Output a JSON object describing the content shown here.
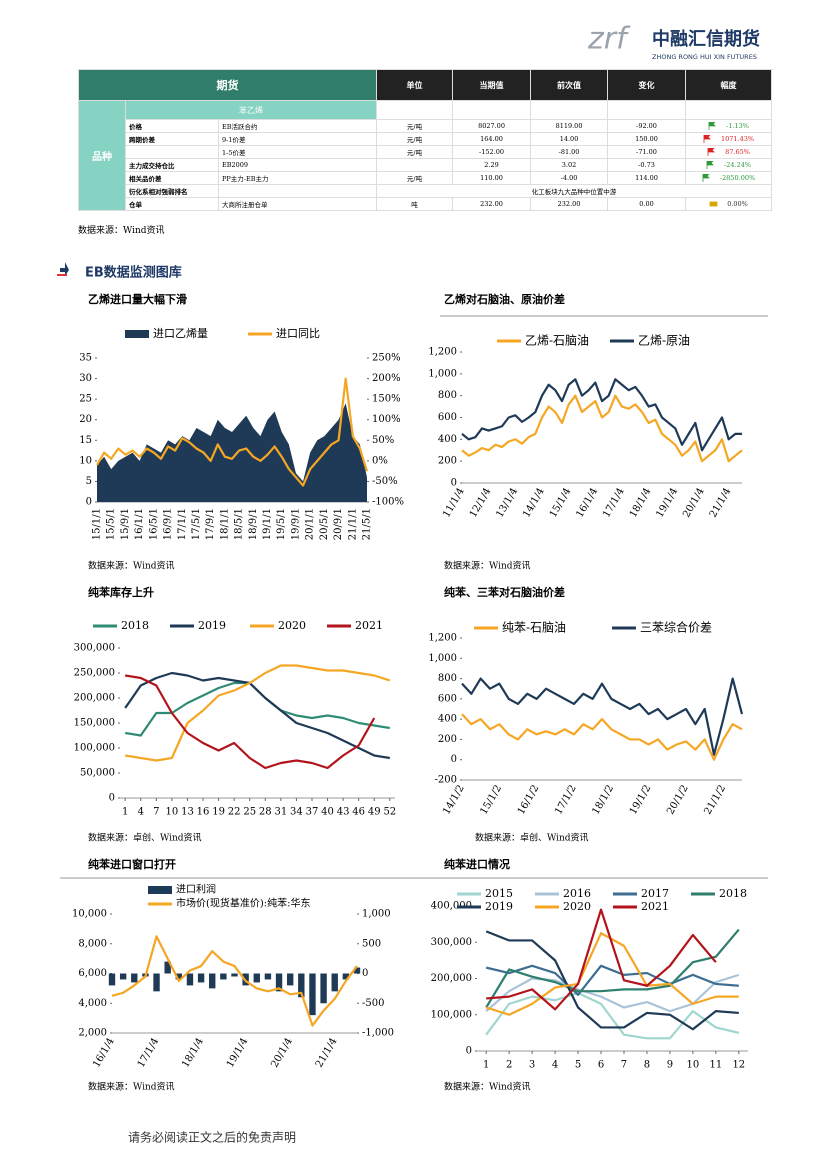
{
  "header": {
    "logo_mark": "zrf",
    "logo_text": "中融汇信期货",
    "logo_sub": "ZHONG RONG HUI XIN FUTURES"
  },
  "table": {
    "headers": [
      "期货",
      "单位",
      "当期值",
      "前次值",
      "变化",
      "幅度"
    ],
    "group": "品种",
    "section": "苯乙烯",
    "rows": [
      {
        "item": "价格",
        "spec": "EB活跃合约",
        "unit": "元/吨",
        "current": "8027.00",
        "previous": "8119.00",
        "change": "-92.00",
        "flag": "green",
        "pct": "-1.13%"
      },
      {
        "item": "跨期价差",
        "spec": "9-1价差",
        "unit": "元/吨",
        "current": "164.00",
        "previous": "14.00",
        "change": "150.00",
        "flag": "red",
        "pct": "1071.43%"
      },
      {
        "spec": "1-5价差",
        "unit": "元/吨",
        "current": "-152.00",
        "previous": "-81.00",
        "change": "-71.00",
        "flag": "red",
        "pct": "87.65%"
      },
      {
        "item": "主力成交持仓比",
        "spec": "EB2009",
        "current": "2.29",
        "previous": "3.02",
        "change": "-0.73",
        "flag": "green",
        "pct": "-24.24%"
      },
      {
        "item": "相关品价差",
        "spec": "PP主力-EB主力",
        "unit": "元/吨",
        "current": "110.00",
        "previous": "-4.00",
        "change": "114.00",
        "flag": "green",
        "pct": "-2850.00%"
      },
      {
        "item": "衍化系相对强弱排名",
        "note": "化工板块九大品种中位置中游"
      },
      {
        "item": "仓单",
        "spec": "大商所注册仓单",
        "unit": "吨",
        "current": "232.00",
        "previous": "232.00",
        "change": "0.00",
        "flag": "yellow",
        "pct": "0.00%"
      }
    ]
  },
  "table_source": "数据来源：Wind资讯",
  "section_title": "EB数据监测图库",
  "footer": "请务必阅读正文之后的免责声明",
  "chart_data": [
    {
      "type": "combo",
      "title": "乙烯进口量大幅下滑",
      "source": "数据来源：Wind资讯",
      "categories": [
        "15/1/1",
        null,
        "15/5/1",
        null,
        "15/9/1",
        null,
        "16/1/1",
        null,
        "16/5/1",
        null,
        "16/9/1",
        null,
        "17/1/1",
        null,
        "17/5/1",
        null,
        "17/9/1",
        null,
        "18/1/1",
        null,
        "18/5/1",
        null,
        "18/9/1",
        null,
        "19/1/1",
        null,
        "19/5/1",
        null,
        "19/9/1",
        null,
        "20/1/1",
        null,
        "20/5/1",
        null,
        "20/9/1",
        null,
        "21/1/1",
        null,
        "21/5/1"
      ],
      "series": [
        {
          "name": "进口乙烯量",
          "type": "area",
          "color": "#1f3a56",
          "values": [
            9,
            11,
            8,
            10,
            11,
            12,
            10,
            14,
            13,
            12,
            15,
            14,
            16,
            15,
            18,
            17,
            16,
            20,
            18,
            17,
            19,
            21,
            18,
            16,
            20,
            22,
            17,
            14,
            7,
            5,
            12,
            15,
            16,
            18,
            20,
            24,
            16,
            14,
            6
          ]
        },
        {
          "name": "进口同比",
          "type": "line",
          "axis": "y2",
          "color": "#f5a623",
          "values": [
            -10,
            20,
            5,
            30,
            15,
            25,
            10,
            30,
            20,
            5,
            35,
            25,
            55,
            45,
            30,
            20,
            0,
            40,
            10,
            5,
            25,
            30,
            10,
            0,
            15,
            35,
            10,
            -20,
            -40,
            -60,
            -20,
            0,
            20,
            40,
            50,
            200,
            60,
            30,
            -25
          ]
        }
      ],
      "ylim": [
        0,
        35
      ],
      "yticks": [
        0,
        5,
        10,
        15,
        20,
        25,
        30,
        35
      ],
      "y2lim": [
        -100,
        250
      ],
      "y2ticks": [
        {
          "value": -100,
          "label": "-100%"
        },
        {
          "value": -50,
          "label": "-50%"
        },
        {
          "value": 0,
          "label": "0%"
        },
        {
          "value": 50,
          "label": "50%"
        },
        {
          "value": 100,
          "label": "100%"
        },
        {
          "value": 150,
          "label": "150%"
        },
        {
          "value": 200,
          "label": "200%"
        },
        {
          "value": 250,
          "label": "250%"
        }
      ]
    },
    {
      "type": "line",
      "title": "乙烯对石脑油、原油价差",
      "source": "数据来源：Wind资讯",
      "categories": [
        "11/1/4",
        null,
        null,
        null,
        "12/1/4",
        null,
        null,
        null,
        "13/1/4",
        null,
        null,
        null,
        "14/1/4",
        null,
        null,
        null,
        "15/1/4",
        null,
        null,
        null,
        "16/1/4",
        null,
        null,
        null,
        "17/1/4",
        null,
        null,
        null,
        "18/1/4",
        null,
        null,
        null,
        "19/1/4",
        null,
        null,
        null,
        "20/1/4",
        null,
        null,
        null,
        "21/1/4",
        null,
        null
      ],
      "series": [
        {
          "name": "乙烯-石脑油",
          "type": "line",
          "color": "#f5a623",
          "values": [
            300,
            250,
            280,
            320,
            300,
            350,
            330,
            380,
            400,
            360,
            420,
            450,
            600,
            700,
            650,
            550,
            720,
            800,
            650,
            700,
            750,
            600,
            650,
            800,
            700,
            680,
            720,
            650,
            550,
            580,
            450,
            400,
            350,
            250,
            300,
            380,
            200,
            250,
            300,
            400,
            200,
            250,
            300
          ]
        },
        {
          "name": "乙烯-原油",
          "type": "line",
          "color": "#1f3a56",
          "values": [
            450,
            400,
            420,
            500,
            480,
            500,
            520,
            600,
            620,
            560,
            600,
            650,
            800,
            900,
            850,
            750,
            900,
            950,
            800,
            850,
            920,
            750,
            800,
            950,
            900,
            850,
            880,
            800,
            700,
            720,
            600,
            550,
            500,
            350,
            450,
            550,
            300,
            400,
            500,
            600,
            400,
            450,
            450
          ]
        }
      ],
      "ylim": [
        0,
        1200
      ],
      "yticks": [
        0,
        200,
        400,
        600,
        800,
        {
          "value": 1000,
          "label": "1,000"
        },
        {
          "value": 1200,
          "label": "1,200"
        }
      ]
    },
    {
      "type": "line",
      "title": "纯苯库存上升",
      "source": "数据来源：卓创、Wind资讯",
      "x": [
        1,
        4,
        7,
        10,
        13,
        16,
        19,
        22,
        25,
        28,
        31,
        34,
        37,
        40,
        43,
        46,
        49,
        52
      ],
      "series": [
        {
          "name": "2018",
          "type": "line",
          "color": "#2e8b74",
          "values": [
            130000,
            125000,
            170000,
            170000,
            190000,
            205000,
            220000,
            230000,
            230000,
            200000,
            175000,
            165000,
            160000,
            165000,
            160000,
            150000,
            145000,
            140000
          ]
        },
        {
          "name": "2019",
          "type": "line",
          "color": "#1f3a56",
          "values": [
            180000,
            225000,
            240000,
            250000,
            245000,
            235000,
            240000,
            235000,
            230000,
            200000,
            175000,
            150000,
            140000,
            130000,
            115000,
            100000,
            85000,
            80000
          ]
        },
        {
          "name": "2020",
          "type": "line",
          "color": "#f5a623",
          "values": [
            85000,
            80000,
            75000,
            80000,
            150000,
            175000,
            205000,
            215000,
            230000,
            250000,
            265000,
            265000,
            260000,
            255000,
            255000,
            250000,
            245000,
            235000
          ]
        },
        {
          "name": "2021",
          "type": "line",
          "color": "#b3131b",
          "values": [
            245000,
            240000,
            225000,
            170000,
            130000,
            110000,
            95000,
            110000,
            80000,
            60000,
            70000,
            75000,
            70000,
            60000,
            85000,
            105000,
            160000,
            null
          ]
        }
      ],
      "xlim": [
        0,
        53
      ],
      "xticks": [
        1,
        4,
        7,
        10,
        13,
        16,
        19,
        22,
        25,
        28,
        31,
        34,
        37,
        40,
        43,
        46,
        49,
        52
      ],
      "ylim": [
        0,
        300000
      ],
      "yticks": [
        0,
        {
          "value": 50000,
          "label": "50,000"
        },
        {
          "value": 100000,
          "label": "100,000"
        },
        {
          "value": 150000,
          "label": "150,000"
        },
        {
          "value": 200000,
          "label": "200,000"
        },
        {
          "value": 250000,
          "label": "250,000"
        },
        {
          "value": 300000,
          "label": "300,000"
        }
      ]
    },
    {
      "type": "line",
      "title": "纯苯、三苯对石脑油价差",
      "source": "数据来源：卓创、Wind资讯",
      "categories": [
        "14/1/2",
        null,
        null,
        null,
        "15/1/2",
        null,
        null,
        null,
        "16/1/2",
        null,
        null,
        null,
        "17/1/2",
        null,
        null,
        null,
        "18/1/2",
        null,
        null,
        null,
        "19/1/2",
        null,
        null,
        null,
        "20/1/2",
        null,
        null,
        null,
        "21/1/2",
        null,
        null
      ],
      "series": [
        {
          "name": "纯苯-石脑油",
          "type": "line",
          "color": "#f5a623",
          "values": [
            450,
            350,
            400,
            300,
            350,
            250,
            200,
            300,
            250,
            280,
            250,
            300,
            250,
            350,
            300,
            400,
            300,
            250,
            200,
            200,
            150,
            200,
            100,
            150,
            180,
            100,
            200,
            0,
            200,
            350,
            300
          ]
        },
        {
          "name": "三苯综合价差",
          "type": "line",
          "color": "#1f3a56",
          "values": [
            750,
            650,
            800,
            700,
            750,
            600,
            550,
            650,
            600,
            700,
            650,
            600,
            550,
            650,
            600,
            750,
            600,
            550,
            500,
            550,
            450,
            500,
            400,
            450,
            500,
            350,
            500,
            50,
            400,
            800,
            450
          ]
        }
      ],
      "ylim": [
        -200,
        1200
      ],
      "yticks": [
        -200,
        0,
        200,
        400,
        600,
        800,
        {
          "value": 1000,
          "label": "1,000"
        },
        {
          "value": 1200,
          "label": "1,200"
        }
      ]
    },
    {
      "type": "combo",
      "title": "纯苯进口窗口打开",
      "source": "数据来源：Wind资讯",
      "categories": [
        "16/1/4",
        null,
        null,
        null,
        "17/1/4",
        null,
        null,
        null,
        "18/1/4",
        null,
        null,
        null,
        "19/1/4",
        null,
        null,
        null,
        "20/1/4",
        null,
        null,
        null,
        "21/1/4",
        null,
        null
      ],
      "series": [
        {
          "name": "进口利润",
          "type": "bar",
          "axis": "y2",
          "color": "#1f3a56",
          "values": [
            -200,
            -100,
            -150,
            -50,
            -300,
            200,
            -100,
            -200,
            -150,
            -250,
            -100,
            -50,
            -200,
            -150,
            -100,
            -300,
            -200,
            -400,
            -700,
            -500,
            -300,
            -100,
            100
          ]
        },
        {
          "name": "市场价(现货基准价):纯苯:华东",
          "type": "line",
          "color": "#f5a623",
          "values": [
            4500,
            4700,
            5200,
            5800,
            8500,
            7000,
            5500,
            6200,
            6500,
            7500,
            6800,
            6500,
            5500,
            5000,
            4800,
            5000,
            4600,
            4700,
            2500,
            3500,
            4300,
            5500,
            6500
          ]
        }
      ],
      "ylim": [
        2000,
        10000
      ],
      "yticks": [
        {
          "value": 2000,
          "label": "2,000"
        },
        {
          "value": 4000,
          "label": "4,000"
        },
        {
          "value": 6000,
          "label": "6,000"
        },
        {
          "value": 8000,
          "label": "8,000"
        },
        {
          "value": 10000,
          "label": "10,000"
        }
      ],
      "y2lim": [
        -1000,
        1000
      ],
      "y2ticks": [
        {
          "value": -1000,
          "label": "-1,000"
        },
        -500,
        0,
        500,
        {
          "value": 1000,
          "label": "1,000"
        }
      ]
    },
    {
      "type": "line",
      "title": "纯苯进口情况",
      "source": "数据来源：Wind资讯",
      "x": [
        1,
        2,
        3,
        4,
        5,
        6,
        7,
        8,
        9,
        10,
        11,
        12
      ],
      "series": [
        {
          "name": "2015",
          "type": "line",
          "color": "#9fd6cf",
          "values": [
            45000,
            130000,
            150000,
            140000,
            160000,
            130000,
            45000,
            35000,
            35000,
            110000,
            65000,
            50000
          ]
        },
        {
          "name": "2016",
          "type": "line",
          "color": "#a9c4d9",
          "values": [
            110000,
            165000,
            200000,
            195000,
            170000,
            150000,
            120000,
            135000,
            110000,
            130000,
            190000,
            210000
          ]
        },
        {
          "name": "2017",
          "type": "line",
          "color": "#3d6e91",
          "values": [
            230000,
            215000,
            235000,
            215000,
            155000,
            235000,
            210000,
            215000,
            185000,
            210000,
            185000,
            180000
          ]
        },
        {
          "name": "2018",
          "type": "line",
          "color": "#2f7f6e",
          "values": [
            120000,
            225000,
            205000,
            190000,
            165000,
            165000,
            170000,
            170000,
            180000,
            245000,
            260000,
            335000
          ]
        },
        {
          "name": "2019",
          "type": "line",
          "color": "#1f3a56",
          "values": [
            330000,
            305000,
            305000,
            250000,
            120000,
            65000,
            65000,
            105000,
            100000,
            60000,
            110000,
            105000
          ]
        },
        {
          "name": "2020",
          "type": "line",
          "color": "#f5a623",
          "values": [
            120000,
            100000,
            130000,
            175000,
            185000,
            325000,
            290000,
            180000,
            185000,
            130000,
            150000,
            150000
          ]
        },
        {
          "name": "2021",
          "type": "line",
          "color": "#b3131b",
          "values": [
            145000,
            150000,
            170000,
            115000,
            185000,
            390000,
            195000,
            180000,
            235000,
            320000,
            245000,
            null
          ]
        }
      ],
      "xlim": [
        0.6,
        12.4
      ],
      "xticks": [
        1,
        2,
        3,
        4,
        5,
        6,
        7,
        8,
        9,
        10,
        11,
        12
      ],
      "ylim": [
        0,
        400000
      ],
      "yticks": [
        0,
        {
          "value": 100000,
          "label": "100,000"
        },
        {
          "value": 200000,
          "label": "200,000"
        },
        {
          "value": 300000,
          "label": "300,000"
        },
        {
          "value": 400000,
          "label": "400,000"
        }
      ]
    }
  ]
}
